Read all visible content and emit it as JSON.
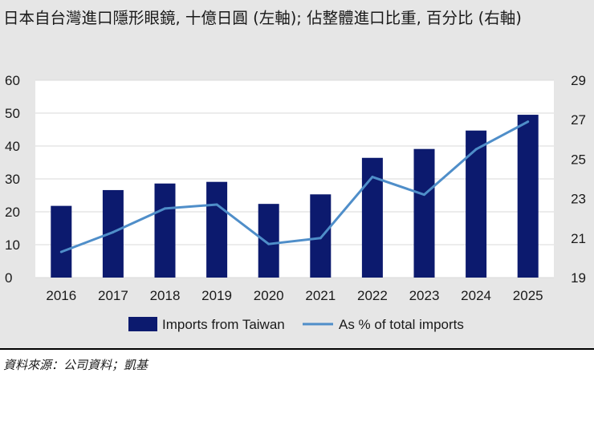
{
  "chart_data": {
    "type": "bar+line",
    "title": "日本自台灣進口隱形眼鏡, 十億日圓 (左軸); 佔整體進口比重, 百分比 (右軸)",
    "categories": [
      "2016",
      "2017",
      "2018",
      "2019",
      "2020",
      "2021",
      "2022",
      "2023",
      "2024",
      "2025"
    ],
    "series": [
      {
        "name": "Imports from Taiwan",
        "type": "bar",
        "axis": "left",
        "color": "#0c1a6e",
        "values": [
          21.8,
          26.6,
          28.6,
          29.1,
          22.4,
          25.3,
          36.4,
          39.1,
          44.7,
          49.5
        ]
      },
      {
        "name": "As % of total imports",
        "type": "line",
        "axis": "right",
        "color": "#4f8ec9",
        "values": [
          20.3,
          21.3,
          22.5,
          22.7,
          20.7,
          21.0,
          24.1,
          23.2,
          25.5,
          26.9
        ]
      }
    ],
    "ylim_left": [
      0,
      60
    ],
    "yticks_left": [
      "0",
      "10",
      "20",
      "30",
      "40",
      "50",
      "60"
    ],
    "ylim_right": [
      19,
      29
    ],
    "yticks_right": [
      "19",
      "21",
      "23",
      "25",
      "27",
      "29"
    ],
    "grid": true,
    "legend_position": "bottom-center"
  },
  "source": "資料來源：公司資料；凱基"
}
